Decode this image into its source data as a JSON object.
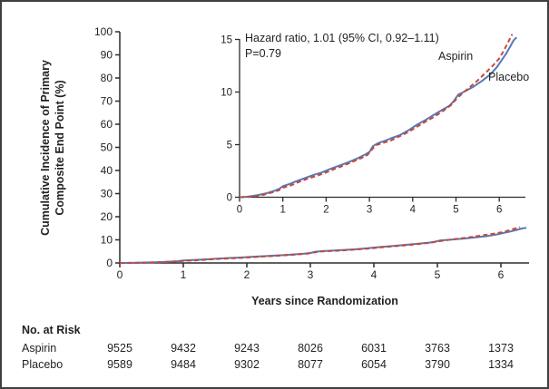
{
  "figure": {
    "ylabel_line1": "Cumulative Incidence of Primary",
    "ylabel_line2": "Composite End Point (%)",
    "xlabel": "Years since Randomization"
  },
  "annotation": {
    "hazard_ratio": "Hazard ratio, 1.01 (95% CI, 0.92–1.11)",
    "p_value": "P=0.79",
    "aspirin_label": "Aspirin",
    "placebo_label": "Placebo"
  },
  "colors": {
    "aspirin": "#c5483a",
    "placebo": "#5878b4",
    "axis": "#2b2b2b",
    "frame": "#3f3f3f"
  },
  "chart_data": {
    "type": "line",
    "title": "",
    "xlabel": "Years since Randomization",
    "ylabel": "Cumulative Incidence of Primary Composite End Point (%)",
    "annotations": [
      "Hazard ratio, 1.01 (95% CI, 0.92–1.11)",
      "P=0.79"
    ],
    "legend_position": "inline-curve-labels",
    "grid": false,
    "main_axis": {
      "xlim": [
        0,
        6.45
      ],
      "ylim": [
        0,
        100
      ],
      "xticks": [
        0,
        1,
        2,
        3,
        4,
        5,
        6
      ],
      "yticks": [
        0,
        10,
        20,
        30,
        40,
        50,
        60,
        70,
        80,
        90,
        100
      ]
    },
    "inset_axis": {
      "xlim": [
        0,
        6.6
      ],
      "ylim": [
        0,
        15
      ],
      "xticks": [
        0,
        1,
        2,
        3,
        4,
        5,
        6
      ],
      "yticks": [
        0,
        5,
        10,
        15
      ]
    },
    "series": [
      {
        "name": "Placebo",
        "color": "#5878b4",
        "style": "solid",
        "points": [
          [
            0,
            0
          ],
          [
            0.2,
            0.05
          ],
          [
            0.4,
            0.18
          ],
          [
            0.6,
            0.35
          ],
          [
            0.8,
            0.6
          ],
          [
            0.92,
            0.8
          ],
          [
            1.0,
            1.05
          ],
          [
            1.15,
            1.25
          ],
          [
            1.3,
            1.5
          ],
          [
            1.5,
            1.8
          ],
          [
            1.7,
            2.1
          ],
          [
            1.9,
            2.35
          ],
          [
            2.1,
            2.7
          ],
          [
            2.3,
            3.0
          ],
          [
            2.5,
            3.3
          ],
          [
            2.7,
            3.65
          ],
          [
            2.9,
            4.05
          ],
          [
            3.0,
            4.3
          ],
          [
            3.08,
            4.85
          ],
          [
            3.2,
            5.15
          ],
          [
            3.35,
            5.35
          ],
          [
            3.5,
            5.6
          ],
          [
            3.7,
            5.9
          ],
          [
            3.9,
            6.35
          ],
          [
            4.1,
            6.9
          ],
          [
            4.3,
            7.35
          ],
          [
            4.5,
            7.85
          ],
          [
            4.7,
            8.35
          ],
          [
            4.85,
            8.7
          ],
          [
            4.95,
            9.15
          ],
          [
            5.05,
            9.75
          ],
          [
            5.2,
            10.05
          ],
          [
            5.4,
            10.5
          ],
          [
            5.6,
            11.05
          ],
          [
            5.8,
            11.7
          ],
          [
            5.95,
            12.4
          ],
          [
            6.05,
            13.0
          ],
          [
            6.15,
            13.6
          ],
          [
            6.25,
            14.3
          ],
          [
            6.33,
            14.9
          ],
          [
            6.4,
            15.2
          ]
        ]
      },
      {
        "name": "Aspirin",
        "color": "#c5483a",
        "style": "dashed",
        "points": [
          [
            0,
            0
          ],
          [
            0.3,
            0.08
          ],
          [
            0.5,
            0.18
          ],
          [
            0.7,
            0.4
          ],
          [
            0.9,
            0.65
          ],
          [
            1.0,
            0.9
          ],
          [
            1.2,
            1.15
          ],
          [
            1.4,
            1.5
          ],
          [
            1.6,
            1.8
          ],
          [
            1.8,
            2.05
          ],
          [
            2.0,
            2.35
          ],
          [
            2.2,
            2.7
          ],
          [
            2.4,
            3.0
          ],
          [
            2.6,
            3.35
          ],
          [
            2.8,
            3.7
          ],
          [
            2.95,
            4.0
          ],
          [
            3.05,
            4.5
          ],
          [
            3.15,
            4.95
          ],
          [
            3.3,
            5.15
          ],
          [
            3.5,
            5.4
          ],
          [
            3.7,
            5.8
          ],
          [
            3.9,
            6.2
          ],
          [
            4.1,
            6.7
          ],
          [
            4.3,
            7.2
          ],
          [
            4.5,
            7.65
          ],
          [
            4.7,
            8.2
          ],
          [
            4.9,
            8.8
          ],
          [
            5.0,
            9.3
          ],
          [
            5.15,
            9.9
          ],
          [
            5.3,
            10.4
          ],
          [
            5.5,
            11.1
          ],
          [
            5.7,
            11.9
          ],
          [
            5.85,
            12.5
          ],
          [
            6.0,
            13.2
          ],
          [
            6.1,
            13.9
          ],
          [
            6.2,
            14.7
          ],
          [
            6.3,
            15.5
          ]
        ]
      }
    ]
  },
  "risk_table": {
    "title": "No. at Risk",
    "rows": [
      {
        "label": "Aspirin",
        "values": [
          "9525",
          "9432",
          "9243",
          "8026",
          "6031",
          "3763",
          "1373"
        ]
      },
      {
        "label": "Placebo",
        "values": [
          "9589",
          "9484",
          "9302",
          "8077",
          "6054",
          "3790",
          "1334"
        ]
      }
    ]
  }
}
